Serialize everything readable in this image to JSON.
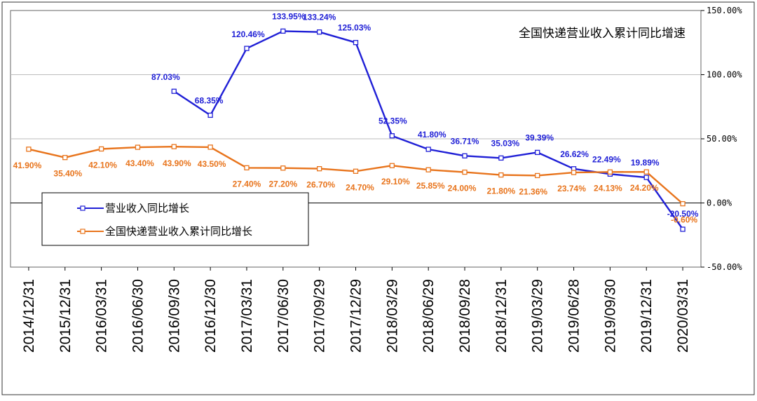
{
  "chart_data": {
    "type": "line",
    "title": "全国快递营业收入累计同比增速",
    "categories": [
      "2014/12/31",
      "2015/12/31",
      "2016/03/31",
      "2016/06/30",
      "2016/09/30",
      "2016/12/30",
      "2017/03/31",
      "2017/06/30",
      "2017/09/29",
      "2017/12/29",
      "2018/03/29",
      "2018/06/29",
      "2018/09/28",
      "2018/12/31",
      "2019/03/29",
      "2019/06/28",
      "2019/09/30",
      "2019/12/31",
      "2020/03/31"
    ],
    "ylim": [
      -50,
      150
    ],
    "yticks": [
      -50,
      0,
      50,
      100,
      150
    ],
    "ytick_labels": [
      "-50.00%",
      "0.00%",
      "50.00%",
      "100.00%",
      "150.00%"
    ],
    "y_axis_position": "right",
    "grid": true,
    "legend_position": "bottom-left",
    "series": [
      {
        "name": "营业收入同比增长",
        "color": "#1f1fd6",
        "values": [
          null,
          null,
          null,
          null,
          87.03,
          68.35,
          120.46,
          133.95,
          133.24,
          125.03,
          52.35,
          41.8,
          36.71,
          35.03,
          39.39,
          26.62,
          22.49,
          19.89,
          -20.5
        ],
        "labels": [
          "",
          "",
          "",
          "",
          "87.03%",
          "68.35%",
          "120.46%",
          "133.95%",
          "133.24%",
          "125.03%",
          "52.35%",
          "41.80%",
          "36.71%",
          "35.03%",
          "39.39%",
          "26.62%",
          "22.49%",
          "19.89%",
          "-20.50%"
        ]
      },
      {
        "name": "全国快递营业收入累计同比增长",
        "color": "#e8741c",
        "values": [
          41.9,
          35.4,
          42.1,
          43.4,
          43.9,
          43.5,
          27.4,
          27.2,
          26.7,
          24.7,
          29.1,
          25.85,
          24.0,
          21.8,
          21.36,
          23.74,
          24.13,
          24.2,
          -0.6
        ],
        "labels": [
          "41.90%",
          "35.40%",
          "42.10%",
          "43.40%",
          "43.90%",
          "43.50%",
          "27.40%",
          "27.20%",
          "26.70%",
          "24.70%",
          "29.10%",
          "25.85%",
          "24.00%",
          "21.80%",
          "21.36%",
          "23.74%",
          "24.13%",
          "24.20%",
          "-0.60%"
        ]
      }
    ]
  }
}
